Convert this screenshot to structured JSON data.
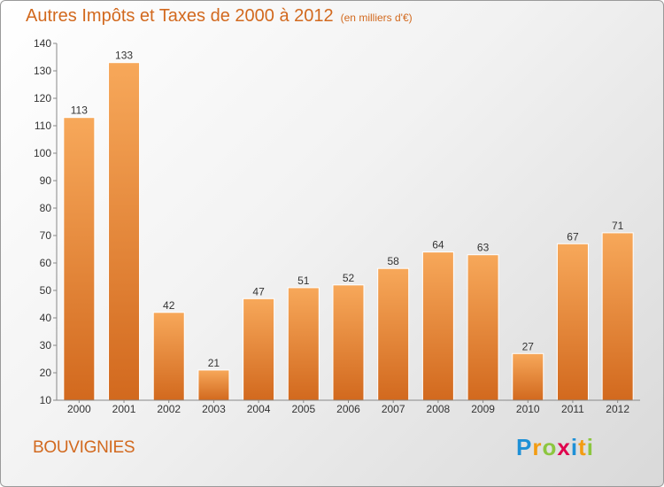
{
  "title": "Autres Impôts et Taxes de 2000 à 2012",
  "unit": "(en milliers d'€)",
  "commune": "BOUVIGNIES",
  "logo": {
    "letters": [
      "P",
      "r",
      "o",
      "x",
      "i",
      "t",
      "i"
    ],
    "colors": [
      "#1e90d6",
      "#f39c12",
      "#8cc63f",
      "#e0004d",
      "#1e90d6",
      "#f39c12",
      "#8cc63f"
    ]
  },
  "colors": {
    "bar_top": "#f7a85a",
    "bar_bottom": "#d2691e",
    "accent": "#d2691e",
    "text": "#333333"
  },
  "chart_data": {
    "type": "bar",
    "categories": [
      "2000",
      "2001",
      "2002",
      "2003",
      "2004",
      "2005",
      "2006",
      "2007",
      "2008",
      "2009",
      "2010",
      "2011",
      "2012"
    ],
    "values": [
      113,
      133,
      42,
      21,
      47,
      51,
      52,
      58,
      64,
      63,
      27,
      67,
      71
    ],
    "title": "Autres Impôts et Taxes de 2000 à 2012",
    "subtitle": "(en milliers d'€)",
    "xlabel": "",
    "ylabel": "",
    "ylim": [
      10,
      140
    ],
    "yticks": [
      10,
      20,
      30,
      40,
      50,
      60,
      70,
      80,
      90,
      100,
      110,
      120,
      130,
      140
    ],
    "grid": false,
    "legend": "none"
  }
}
